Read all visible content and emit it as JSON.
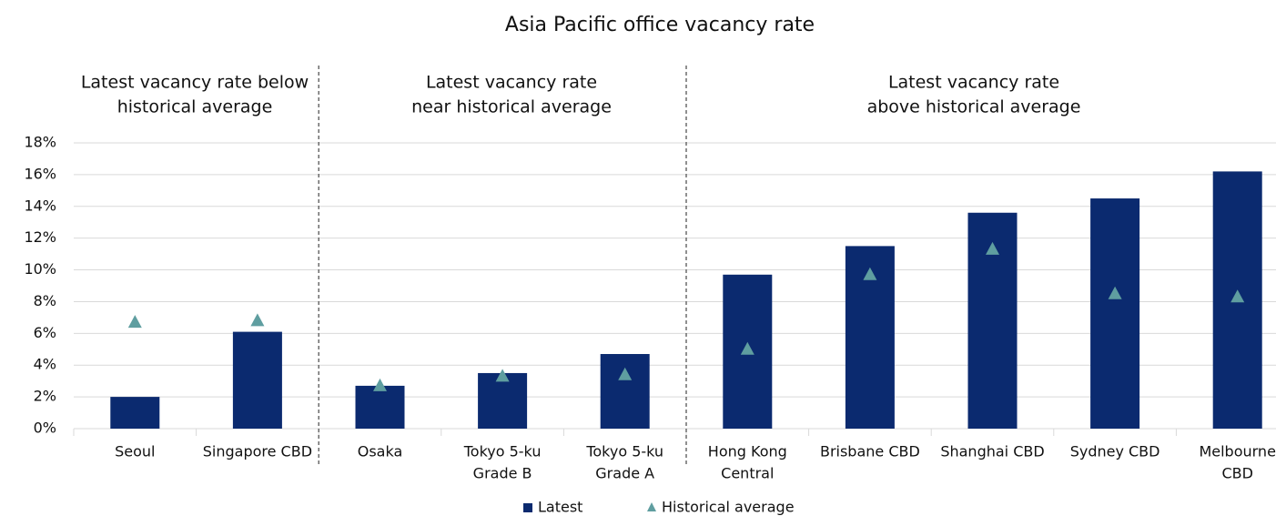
{
  "chart_data": {
    "type": "bar",
    "title": "Asia Pacific office vacancy rate",
    "groups": [
      {
        "label": [
          "Latest vacancy rate below",
          "historical average"
        ]
      },
      {
        "label": [
          "Latest vacancy rate",
          "near historical average"
        ]
      },
      {
        "label": [
          "Latest vacancy rate",
          "above historical average"
        ]
      }
    ],
    "categories": [
      [
        "Seoul"
      ],
      [
        "Singapore CBD"
      ],
      [
        "Osaka"
      ],
      [
        "Tokyo 5-ku",
        "Grade B"
      ],
      [
        "Tokyo 5-ku",
        "Grade A"
      ],
      [
        "Hong Kong",
        "Central"
      ],
      [
        "Brisbane CBD"
      ],
      [
        "Shanghai CBD"
      ],
      [
        "Sydney CBD"
      ],
      [
        "Melbourne",
        "CBD"
      ]
    ],
    "series": [
      {
        "name": "Latest",
        "color": "#0b2a6f",
        "marker": "bar",
        "values": [
          2.0,
          6.1,
          2.7,
          3.5,
          4.7,
          9.7,
          11.5,
          13.6,
          14.5,
          16.2
        ]
      },
      {
        "name": "Historical average",
        "color": "#5f9ea0",
        "marker": "triangle",
        "values": [
          6.7,
          6.8,
          2.7,
          3.3,
          3.4,
          5.0,
          9.7,
          11.3,
          8.5,
          8.3
        ]
      }
    ],
    "ylim": [
      0,
      18
    ],
    "yticks": [
      {
        "value": 0,
        "label": "0%"
      },
      {
        "value": 2,
        "label": "2%"
      },
      {
        "value": 4,
        "label": "4%"
      },
      {
        "value": 6,
        "label": "6%"
      },
      {
        "value": 8,
        "label": "8%"
      },
      {
        "value": 10,
        "label": "10%"
      },
      {
        "value": 12,
        "label": "12%"
      },
      {
        "value": 14,
        "label": "14%"
      },
      {
        "value": 16,
        "label": "16%"
      },
      {
        "value": 18,
        "label": "18%"
      }
    ],
    "grid": true
  }
}
